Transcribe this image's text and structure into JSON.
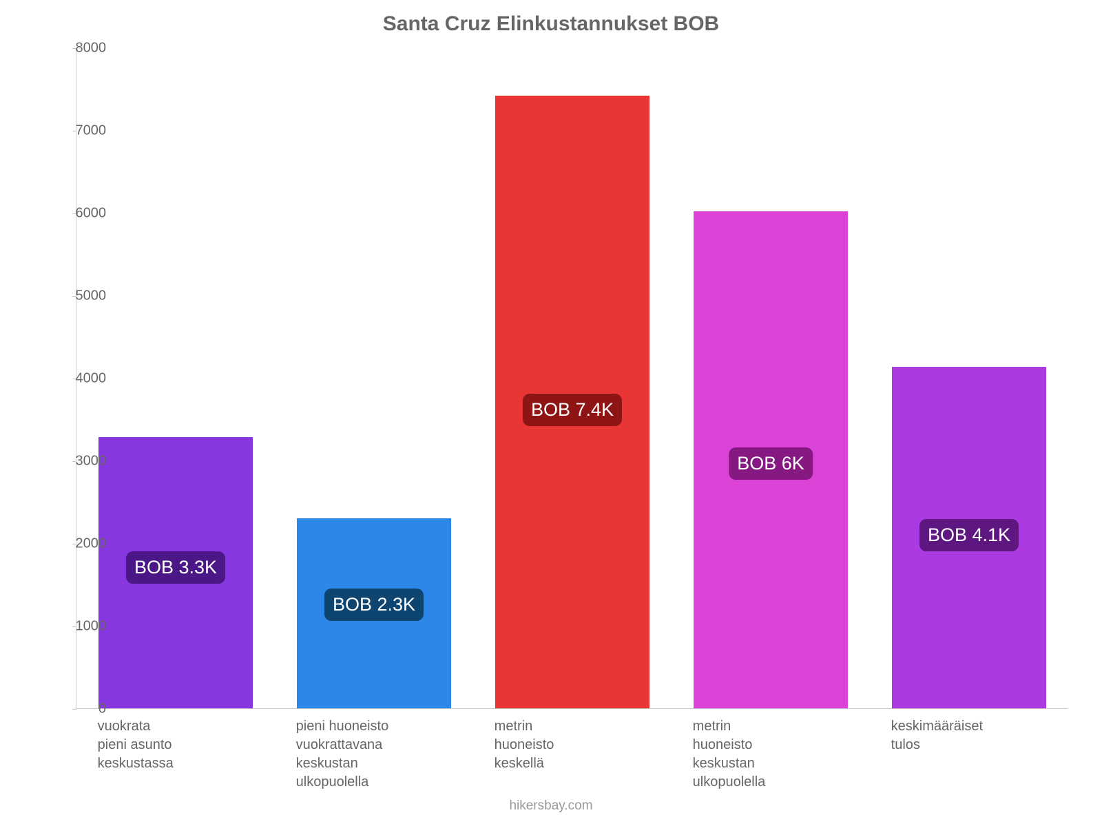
{
  "chart": {
    "type": "bar",
    "title": "Santa Cruz Elinkustannukset BOB",
    "title_fontsize": 30,
    "title_color": "#666666",
    "background_color": "#ffffff",
    "axis_color": "#c8c8c8",
    "tick_label_color": "#666666",
    "tick_label_fontsize": 20,
    "ylim": [
      0,
      8000
    ],
    "ytick_step": 1000,
    "yticks": [
      0,
      1000,
      2000,
      3000,
      4000,
      5000,
      6000,
      7000,
      8000
    ],
    "bars": [
      {
        "category_lines": [
          "vuokrata",
          "pieni asunto",
          "keskustassa"
        ],
        "value": 3280,
        "bar_color": "#8637e0",
        "label_text": "BOB 3.3K",
        "label_bg": "#4b1787",
        "label_text_color": "#ffffff"
      },
      {
        "category_lines": [
          "pieni huoneisto",
          "vuokrattavana",
          "keskustan",
          "ulkopuolella"
        ],
        "value": 2300,
        "bar_color": "#2c87e8",
        "label_text": "BOB 2.3K",
        "label_bg": "#0e4470",
        "label_text_color": "#ffffff"
      },
      {
        "category_lines": [
          "metrin",
          "huoneisto",
          "keskellä"
        ],
        "value": 7420,
        "bar_color": "#e83535",
        "label_text": "BOB 7.4K",
        "label_bg": "#8f1414",
        "label_text_color": "#ffffff"
      },
      {
        "category_lines": [
          "metrin",
          "huoneisto",
          "keskustan",
          "ulkopuolella"
        ],
        "value": 6020,
        "bar_color": "#da43d5",
        "label_text": "BOB 6K",
        "label_bg": "#861882",
        "label_text_color": "#ffffff"
      },
      {
        "category_lines": [
          "keskimääräiset",
          "tulos"
        ],
        "value": 4130,
        "bar_color": "#ab3ae1",
        "label_text": "BOB 4.1K",
        "label_bg": "#5e1680",
        "label_text_color": "#ffffff"
      }
    ],
    "bar_width_ratio": 0.78,
    "bar_label_fontsize": 27,
    "bar_label_radius": 10,
    "xlabel_fontsize": 20,
    "xlabel_color": "#666666",
    "attribution": "hikersbay.com",
    "attribution_color": "#999999",
    "attribution_fontsize": 19
  }
}
